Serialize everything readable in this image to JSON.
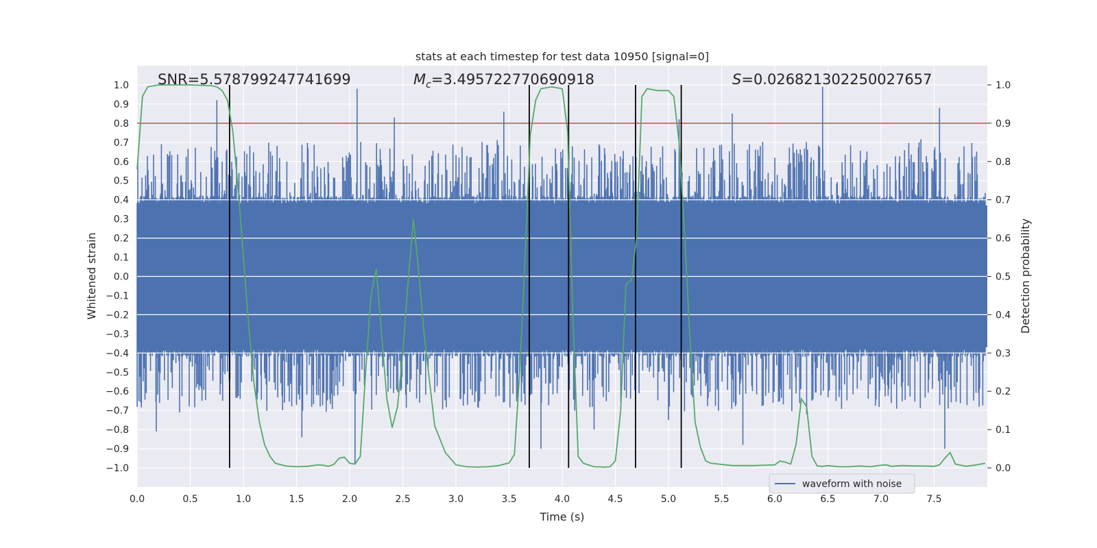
{
  "chart_data": {
    "type": "line",
    "title": "stats at each timestep for test data 10950 [signal=0]",
    "xlabel": "Time (s)",
    "ylabel_left": "Whitened strain",
    "ylabel_right": "Detection probability",
    "xlim": [
      0.0,
      8.0
    ],
    "ylim_left": [
      -1.1,
      1.1
    ],
    "ylim_right": [
      -0.05,
      1.05
    ],
    "x_ticks": [
      "0.0",
      "0.5",
      "1.0",
      "1.5",
      "2.0",
      "2.5",
      "3.0",
      "3.5",
      "4.0",
      "4.5",
      "5.0",
      "5.5",
      "6.0",
      "6.5",
      "7.0",
      "7.5"
    ],
    "x_tick_values": [
      0.0,
      0.5,
      1.0,
      1.5,
      2.0,
      2.5,
      3.0,
      3.5,
      4.0,
      4.5,
      5.0,
      5.5,
      6.0,
      6.5,
      7.0,
      7.5
    ],
    "y_left_ticks": [
      "1.0",
      "0.9",
      "0.8",
      "0.7",
      "0.6",
      "0.5",
      "0.4",
      "0.3",
      "0.2",
      "0.1",
      "0.0",
      "−0.1",
      "−0.2",
      "−0.3",
      "−0.4",
      "−0.5",
      "−0.6",
      "−0.7",
      "−0.8",
      "−0.9",
      "−1.0"
    ],
    "y_left_tick_values": [
      1.0,
      0.9,
      0.8,
      0.7,
      0.6,
      0.5,
      0.4,
      0.3,
      0.2,
      0.1,
      0.0,
      -0.1,
      -0.2,
      -0.3,
      -0.4,
      -0.5,
      -0.6,
      -0.7,
      -0.8,
      -0.9,
      -1.0
    ],
    "y_right_ticks": [
      "1.0",
      "0.9",
      "0.8",
      "0.7",
      "0.6",
      "0.5",
      "0.4",
      "0.3",
      "0.2",
      "0.1",
      "0.0"
    ],
    "y_right_tick_values": [
      1.0,
      0.9,
      0.8,
      0.7,
      0.6,
      0.5,
      0.4,
      0.3,
      0.2,
      0.1,
      0.0
    ],
    "annotations": {
      "snr": "SNR=5.578799247741699",
      "mc_symbol": "M",
      "mc_sub": "c",
      "mc_value": "=3.495722770690918",
      "s_symbol": "S",
      "s_value": "=0.026821302250027657"
    },
    "threshold_line": {
      "axis": "right",
      "value": 0.9,
      "color": "#c44e52"
    },
    "vertical_lines": [
      0.87,
      3.69,
      4.06,
      4.69,
      5.12
    ],
    "waveform": {
      "name": "waveform with noise",
      "color": "#4c72b0",
      "description_values": "dense noise band, bulk within ±0.4, spikes up to ~0.98 and down to ~-1.0",
      "band": [
        -0.4,
        0.4
      ],
      "spikes": [
        [
          0.75,
          0.92
        ],
        [
          0.8,
          0.6
        ],
        [
          0.18,
          -0.81
        ],
        [
          2.07,
          0.98
        ],
        [
          2.05,
          -0.98
        ],
        [
          2.42,
          0.83
        ],
        [
          3.45,
          0.86
        ],
        [
          3.8,
          -0.9
        ],
        [
          3.95,
          0.55
        ],
        [
          5.0,
          -0.75
        ],
        [
          5.1,
          0.82
        ],
        [
          5.6,
          0.85
        ],
        [
          6.45,
          0.99
        ],
        [
          7.55,
          0.88
        ],
        [
          7.6,
          -0.9
        ],
        [
          1.55,
          -0.84
        ],
        [
          2.25,
          -0.62
        ],
        [
          6.3,
          -0.72
        ],
        [
          5.7,
          -0.88
        ],
        [
          4.3,
          -0.8
        ]
      ],
      "legend_location": "lower-right"
    },
    "probability": {
      "name": "detection probability",
      "axis": "right",
      "color": "#55a868",
      "x": [
        0.0,
        0.05,
        0.1,
        0.2,
        0.3,
        0.5,
        0.7,
        0.75,
        0.8,
        0.85,
        0.9,
        0.95,
        1.0,
        1.05,
        1.1,
        1.15,
        1.2,
        1.25,
        1.3,
        1.4,
        1.5,
        1.6,
        1.7,
        1.75,
        1.8,
        1.85,
        1.9,
        1.95,
        2.0,
        2.05,
        2.1,
        2.15,
        2.2,
        2.25,
        2.3,
        2.35,
        2.4,
        2.45,
        2.5,
        2.55,
        2.6,
        2.65,
        2.7,
        2.8,
        2.9,
        3.0,
        3.1,
        3.2,
        3.3,
        3.4,
        3.5,
        3.55,
        3.6,
        3.65,
        3.7,
        3.75,
        3.8,
        3.9,
        4.0,
        4.05,
        4.1,
        4.15,
        4.2,
        4.3,
        4.4,
        4.45,
        4.5,
        4.55,
        4.6,
        4.65,
        4.7,
        4.75,
        4.8,
        4.9,
        5.0,
        5.05,
        5.1,
        5.15,
        5.2,
        5.25,
        5.3,
        5.35,
        5.4,
        5.5,
        5.6,
        5.7,
        5.8,
        5.9,
        6.0,
        6.05,
        6.1,
        6.15,
        6.2,
        6.25,
        6.3,
        6.35,
        6.4,
        6.45,
        6.5,
        6.6,
        6.7,
        6.8,
        6.9,
        7.0,
        7.05,
        7.1,
        7.2,
        7.3,
        7.4,
        7.5,
        7.55,
        7.6,
        7.65,
        7.7,
        7.8,
        7.9,
        7.98
      ],
      "y": [
        0.78,
        0.97,
        0.995,
        1.0,
        1.0,
        1.0,
        0.998,
        0.995,
        0.985,
        0.96,
        0.88,
        0.73,
        0.55,
        0.37,
        0.22,
        0.12,
        0.06,
        0.03,
        0.012,
        0.005,
        0.003,
        0.004,
        0.008,
        0.007,
        0.004,
        0.009,
        0.025,
        0.028,
        0.012,
        0.01,
        0.03,
        0.25,
        0.45,
        0.52,
        0.35,
        0.18,
        0.105,
        0.16,
        0.3,
        0.49,
        0.65,
        0.51,
        0.35,
        0.11,
        0.04,
        0.008,
        0.003,
        0.002,
        0.003,
        0.006,
        0.013,
        0.035,
        0.25,
        0.55,
        0.87,
        0.96,
        0.99,
        0.995,
        0.99,
        0.88,
        0.4,
        0.03,
        0.012,
        0.003,
        0.002,
        0.003,
        0.018,
        0.15,
        0.48,
        0.49,
        0.6,
        0.97,
        0.99,
        0.985,
        0.985,
        0.97,
        0.85,
        0.62,
        0.35,
        0.12,
        0.055,
        0.018,
        0.012,
        0.009,
        0.006,
        0.006,
        0.006,
        0.007,
        0.008,
        0.018,
        0.015,
        0.01,
        0.06,
        0.18,
        0.16,
        0.03,
        0.005,
        0.004,
        0.006,
        0.003,
        0.003,
        0.005,
        0.003,
        0.007,
        0.008,
        0.004,
        0.006,
        0.005,
        0.005,
        0.004,
        0.008,
        0.025,
        0.04,
        0.01,
        0.004,
        0.008,
        0.012
      ]
    }
  }
}
